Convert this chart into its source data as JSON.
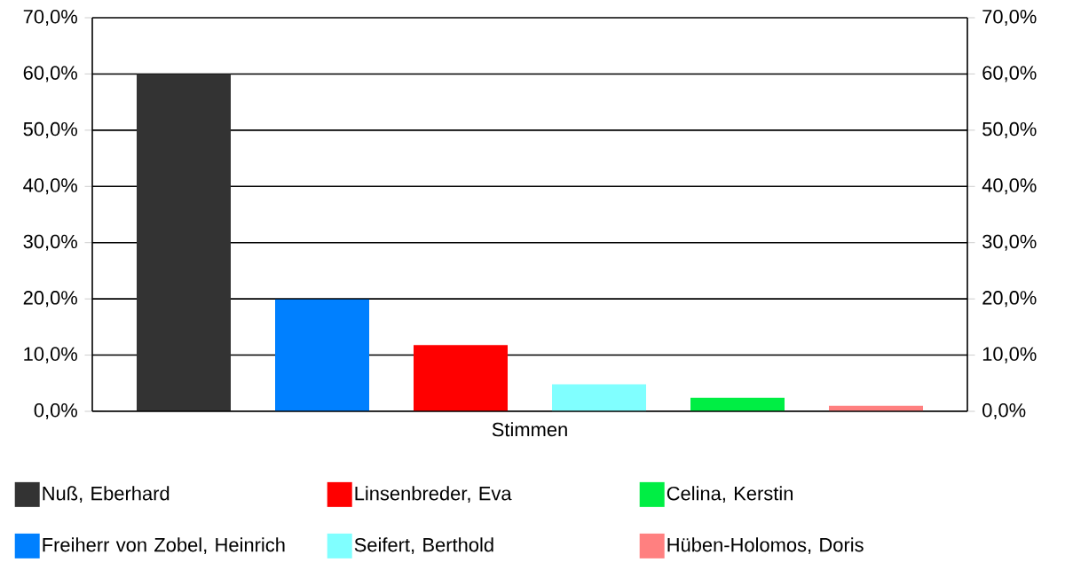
{
  "chart_data": {
    "type": "bar",
    "categories": [
      "Stimmen"
    ],
    "series": [
      {
        "name": "Nuß, Eberhard",
        "color": "#333333",
        "values": [
          60.0
        ]
      },
      {
        "name": "Freiherr von Zobel, Heinrich",
        "color": "#0080ff",
        "values": [
          19.9
        ]
      },
      {
        "name": "Linsenbreder, Eva",
        "color": "#ff0000",
        "values": [
          11.8
        ]
      },
      {
        "name": "Seifert, Berthold",
        "color": "#80ffff",
        "values": [
          4.8
        ]
      },
      {
        "name": "Celina, Kerstin",
        "color": "#00ee44",
        "values": [
          2.4
        ]
      },
      {
        "name": "Hüben-Holomos, Doris",
        "color": "#ff8080",
        "values": [
          1.0
        ]
      }
    ],
    "ylim": [
      0,
      70
    ],
    "yticks": [
      {
        "value": 0,
        "label": "0,0%"
      },
      {
        "value": 10,
        "label": "10,0%"
      },
      {
        "value": 20,
        "label": "20,0%"
      },
      {
        "value": 30,
        "label": "30,0%"
      },
      {
        "value": 40,
        "label": "40,0%"
      },
      {
        "value": 50,
        "label": "50,0%"
      },
      {
        "value": 60,
        "label": "60,0%"
      },
      {
        "value": 70,
        "label": "70,0%"
      }
    ],
    "grid": "y",
    "legend": "bottom"
  }
}
